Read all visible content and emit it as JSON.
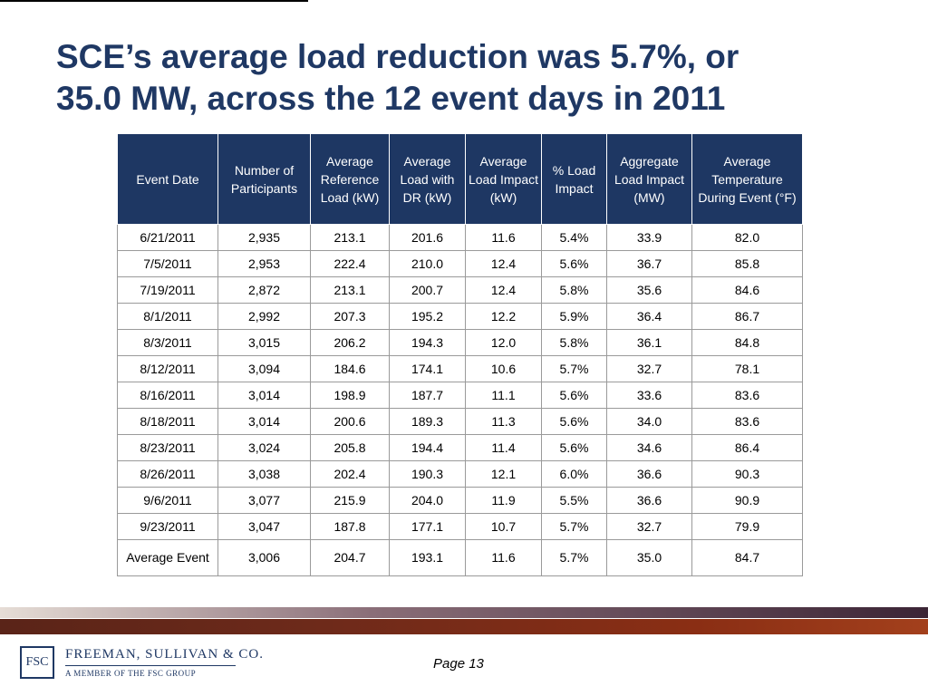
{
  "title": {
    "line1": "SCE’s average load reduction was 5.7%, or",
    "line2": "35.0 MW, across the 12 event days in 2011"
  },
  "table": {
    "headers": [
      "Event Date",
      "Number of Participants",
      "Average Reference Load (kW)",
      "Average Load with DR (kW)",
      "Average Load Impact (kW)",
      "% Load Impact",
      "Aggregate Load Impact (MW)",
      "Average Temperature During Event (°F)"
    ],
    "rows": [
      [
        "6/21/2011",
        "2,935",
        "213.1",
        "201.6",
        "11.6",
        "5.4%",
        "33.9",
        "82.0"
      ],
      [
        "7/5/2011",
        "2,953",
        "222.4",
        "210.0",
        "12.4",
        "5.6%",
        "36.7",
        "85.8"
      ],
      [
        "7/19/2011",
        "2,872",
        "213.1",
        "200.7",
        "12.4",
        "5.8%",
        "35.6",
        "84.6"
      ],
      [
        "8/1/2011",
        "2,992",
        "207.3",
        "195.2",
        "12.2",
        "5.9%",
        "36.4",
        "86.7"
      ],
      [
        "8/3/2011",
        "3,015",
        "206.2",
        "194.3",
        "12.0",
        "5.8%",
        "36.1",
        "84.8"
      ],
      [
        "8/12/2011",
        "3,094",
        "184.6",
        "174.1",
        "10.6",
        "5.7%",
        "32.7",
        "78.1"
      ],
      [
        "8/16/2011",
        "3,014",
        "198.9",
        "187.7",
        "11.1",
        "5.6%",
        "33.6",
        "83.6"
      ],
      [
        "8/18/2011",
        "3,014",
        "200.6",
        "189.3",
        "11.3",
        "5.6%",
        "34.0",
        "83.6"
      ],
      [
        "8/23/2011",
        "3,024",
        "205.8",
        "194.4",
        "11.4",
        "5.6%",
        "34.6",
        "86.4"
      ],
      [
        "8/26/2011",
        "3,038",
        "202.4",
        "190.3",
        "12.1",
        "6.0%",
        "36.6",
        "90.3"
      ],
      [
        "9/6/2011",
        "3,077",
        "215.9",
        "204.0",
        "11.9",
        "5.5%",
        "36.6",
        "90.9"
      ],
      [
        "9/23/2011",
        "3,047",
        "187.8",
        "177.1",
        "10.7",
        "5.7%",
        "32.7",
        "79.9"
      ]
    ],
    "average_row": [
      "Average Event",
      "3,006",
      "204.7",
      "193.1",
      "11.6",
      "5.7%",
      "35.0",
      "84.7"
    ]
  },
  "footer": {
    "logo_mark": "FSC",
    "company_name": "FREEMAN, SULLIVAN & CO.",
    "company_sub": "A MEMBER OF THE FSC GROUP",
    "page_label": "Page 13"
  },
  "colors": {
    "title": "#1f3864",
    "header_bg": "#1e3763",
    "header_text": "#ffffff",
    "band_dark": "#3c2536",
    "band_rust": "#8a2e14"
  }
}
